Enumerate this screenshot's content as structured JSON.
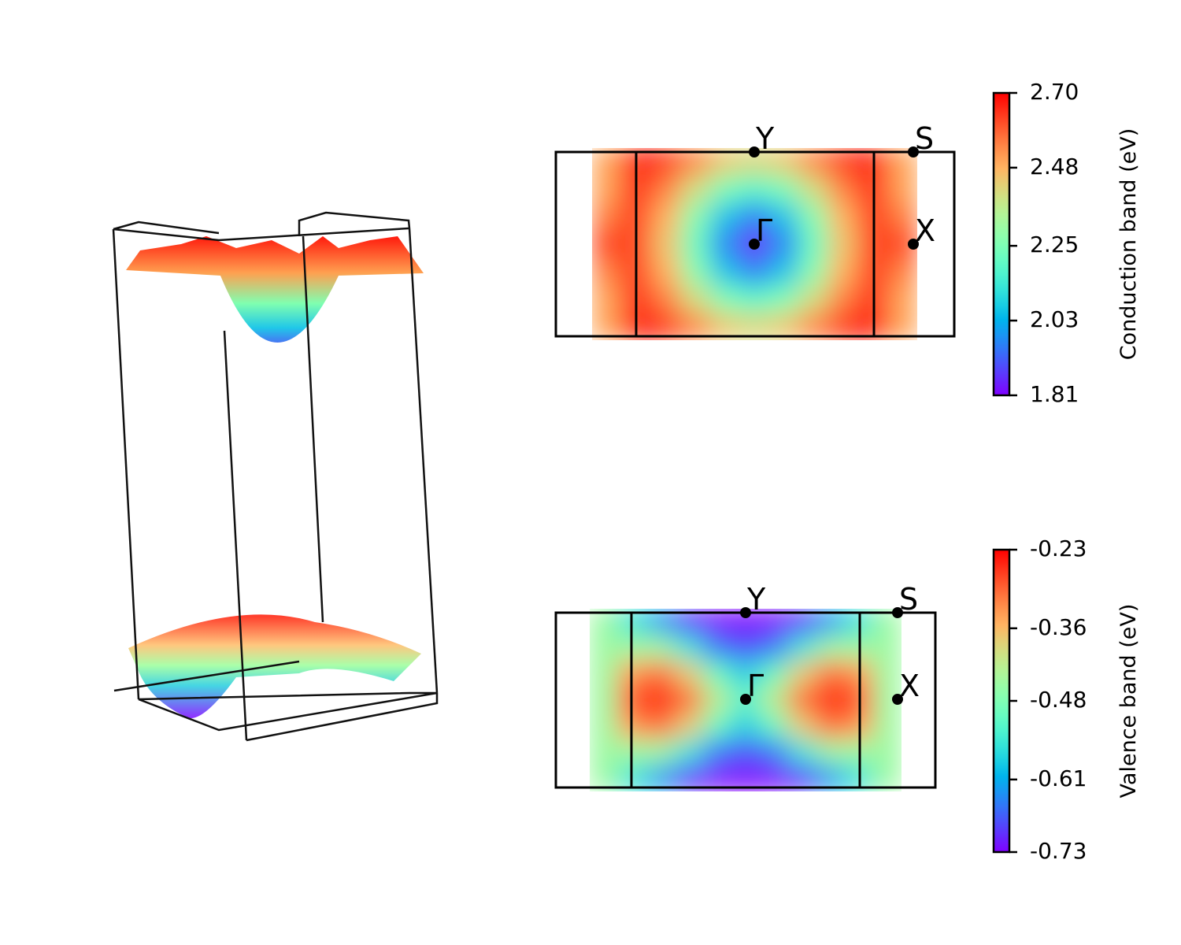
{
  "chart_data": [
    {
      "type": "heatmap",
      "colormap": "rainbow",
      "colorbar_label": "Conduction band (eV)",
      "points": [
        "Y",
        "S",
        "Γ",
        "X"
      ],
      "clim": [
        1.81,
        2.7
      ],
      "cticks": [
        1.81,
        2.03,
        2.25,
        2.48,
        {
          "value": 2.7,
          "label": "2.70"
        }
      ],
      "z": [
        [
          2.5,
          2.66,
          2.63,
          2.54,
          2.44,
          2.41,
          2.44,
          2.54,
          2.63,
          2.66,
          2.5
        ],
        [
          2.5,
          2.65,
          2.55,
          2.4,
          2.25,
          2.19,
          2.25,
          2.4,
          2.55,
          2.65,
          2.5
        ],
        [
          2.55,
          2.63,
          2.48,
          2.27,
          2.06,
          1.96,
          2.06,
          2.27,
          2.48,
          2.63,
          2.55
        ],
        [
          2.62,
          2.62,
          2.45,
          2.22,
          1.97,
          1.85,
          1.97,
          2.22,
          2.45,
          2.62,
          2.62
        ],
        [
          2.55,
          2.63,
          2.48,
          2.27,
          2.06,
          1.96,
          2.06,
          2.27,
          2.48,
          2.63,
          2.55
        ],
        [
          2.5,
          2.65,
          2.55,
          2.4,
          2.25,
          2.19,
          2.25,
          2.4,
          2.55,
          2.65,
          2.5
        ],
        [
          2.5,
          2.66,
          2.63,
          2.54,
          2.44,
          2.41,
          2.44,
          2.54,
          2.63,
          2.66,
          2.5
        ]
      ]
    },
    {
      "type": "heatmap",
      "colormap": "rainbow",
      "colorbar_label": "Valence band (eV)",
      "points": [
        "Y",
        "S",
        "Γ",
        "X"
      ],
      "clim": [
        -0.73,
        -0.23
      ],
      "cticks": [
        -0.73,
        -0.61,
        -0.48,
        -0.36,
        -0.23
      ],
      "z": [
        [
          -0.45,
          -0.55,
          -0.62,
          -0.7,
          -0.73,
          -0.73,
          -0.73,
          -0.7,
          -0.62,
          -0.55,
          -0.45
        ],
        [
          -0.45,
          -0.45,
          -0.45,
          -0.55,
          -0.65,
          -0.68,
          -0.65,
          -0.55,
          -0.45,
          -0.45,
          -0.45
        ],
        [
          -0.45,
          -0.33,
          -0.3,
          -0.38,
          -0.5,
          -0.58,
          -0.5,
          -0.38,
          -0.3,
          -0.33,
          -0.45
        ],
        [
          -0.45,
          -0.28,
          -0.25,
          -0.3,
          -0.42,
          -0.52,
          -0.42,
          -0.3,
          -0.25,
          -0.28,
          -0.45
        ],
        [
          -0.45,
          -0.33,
          -0.3,
          -0.38,
          -0.5,
          -0.58,
          -0.5,
          -0.38,
          -0.3,
          -0.33,
          -0.45
        ],
        [
          -0.45,
          -0.45,
          -0.45,
          -0.55,
          -0.65,
          -0.68,
          -0.65,
          -0.55,
          -0.45,
          -0.45,
          -0.45
        ],
        [
          -0.45,
          -0.55,
          -0.62,
          -0.7,
          -0.73,
          -0.73,
          -0.73,
          -0.7,
          -0.62,
          -0.55,
          -0.45
        ]
      ]
    }
  ]
}
